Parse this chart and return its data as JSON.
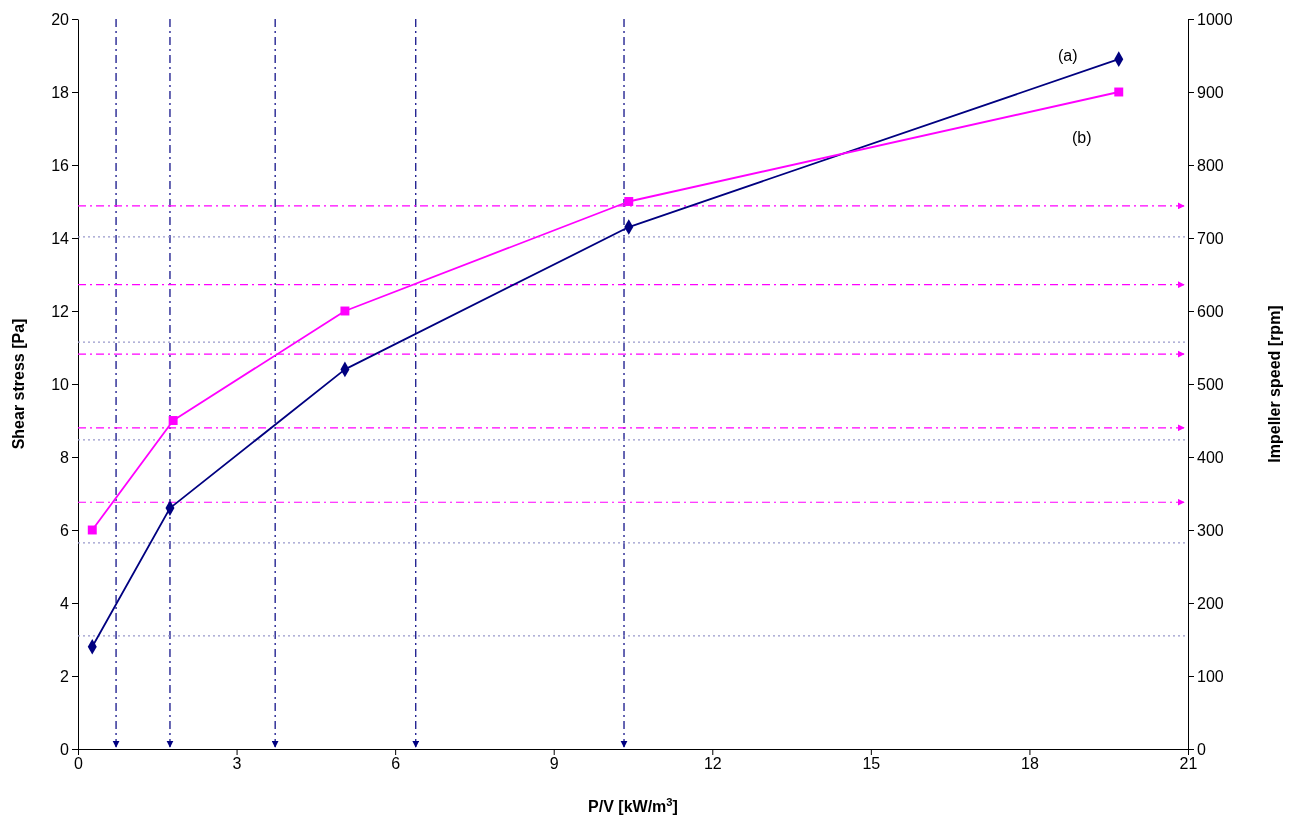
{
  "chart_data": {
    "type": "line",
    "xlabel": "P/V [kW/m$^{3}$]",
    "ylabel": "Shear stress [Pa]",
    "y2label": "Impeller speed [rpm]",
    "xlim": [
      0,
      21
    ],
    "xticks": [
      0,
      3,
      6,
      9,
      12,
      15,
      18,
      21
    ],
    "ylim": [
      0,
      20
    ],
    "yticks": [
      0,
      2,
      4,
      6,
      8,
      10,
      12,
      14,
      16,
      18,
      20
    ],
    "y2lim": [
      0,
      1000
    ],
    "y2ticks": [
      0,
      100,
      200,
      300,
      400,
      500,
      600,
      700,
      800,
      900,
      1000
    ],
    "grid": false,
    "line_style": "solid",
    "series": [
      {
        "color": "#000080",
        "marker": "diamond",
        "x": [
          0.27,
          1.74,
          5.05,
          10.42,
          19.69
        ],
        "values": [
          2.8,
          6.6,
          10.4,
          14.3,
          18.9
        ]
      },
      {
        "color": "#ff00ff",
        "marker": "square",
        "axis": "y2",
        "x": [
          0.27,
          1.8,
          5.05,
          10.42,
          19.69
        ],
        "values": [
          300,
          450,
          600,
          750,
          900
        ]
      }
    ],
    "ref_lines": [
      {
        "axis": "x",
        "value": 0.72,
        "color": "#000080",
        "line_style": "dashdot"
      },
      {
        "axis": "x",
        "value": 1.74,
        "color": "#000080",
        "line_style": "dashdot"
      },
      {
        "axis": "x",
        "value": 3.73,
        "color": "#000080",
        "line_style": "dashdot"
      },
      {
        "axis": "x",
        "value": 6.39,
        "color": "#000080",
        "line_style": "dashdot"
      },
      {
        "axis": "x",
        "value": 10.33,
        "color": "#000080",
        "line_style": "dashdot"
      },
      {
        "axis": "y2",
        "value": 338,
        "color": "#ff00ff",
        "line_style": "dashdot"
      },
      {
        "axis": "y2",
        "value": 440,
        "color": "#ff00ff",
        "line_style": "dashdot"
      },
      {
        "axis": "y2",
        "value": 541,
        "color": "#ff00ff",
        "line_style": "dashdot"
      },
      {
        "axis": "y2",
        "value": 636,
        "color": "#ff00ff",
        "line_style": "dashdot"
      },
      {
        "axis": "y2",
        "value": 744,
        "color": "#ff00ff",
        "line_style": "dashdot"
      },
      {
        "axis": "y",
        "value": 3.1,
        "color": "#9999cc",
        "line_style": "dotted"
      },
      {
        "axis": "y",
        "value": 5.65,
        "color": "#9999cc",
        "line_style": "dotted"
      },
      {
        "axis": "y",
        "value": 8.47,
        "color": "#9999cc",
        "line_style": "dotted"
      },
      {
        "axis": "y",
        "value": 11.15,
        "color": "#9999cc",
        "line_style": "dotted"
      },
      {
        "axis": "y",
        "value": 14.03,
        "color": "#9999cc",
        "line_style": "dotted"
      }
    ],
    "annotations": [
      "(a)",
      "(b)"
    ]
  }
}
